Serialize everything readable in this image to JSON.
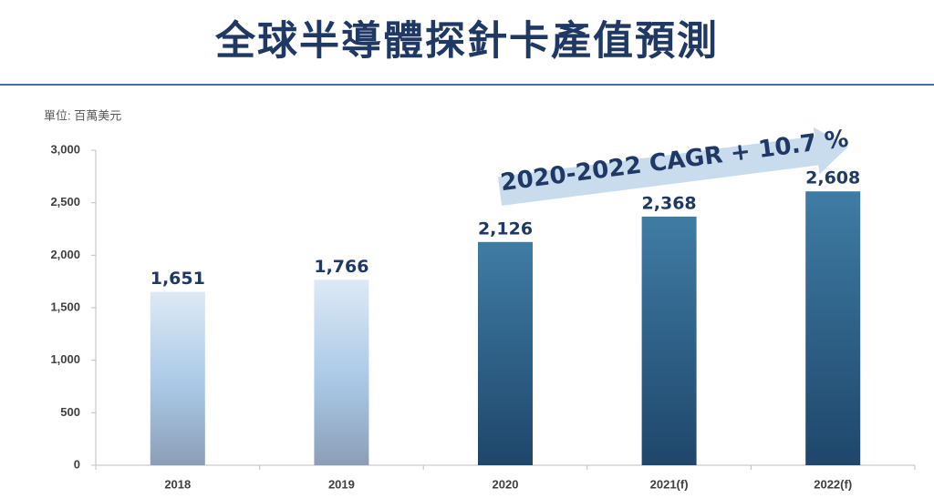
{
  "chart_data": {
    "type": "bar",
    "title": "全球半導體探針卡產值預測",
    "unit_label": "單位: 百萬美元",
    "annotation": "2020-2022 CAGR + 10.7 %",
    "categories": [
      "2018",
      "2019",
      "2020",
      "2021(f)",
      "2022(f)"
    ],
    "values": [
      1651,
      1766,
      2126,
      2368,
      2608
    ],
    "value_labels": [
      "1,651",
      "1,766",
      "2,126",
      "2,368",
      "2,608"
    ],
    "colors": [
      "#a9c8e6",
      "#a9c8e6",
      "#2a6d9a",
      "#2a6d9a",
      "#2a6d9a"
    ],
    "ylim": [
      0,
      3000
    ],
    "yticks": [
      0,
      500,
      {
        "value": 1000,
        "label": "1,000"
      },
      {
        "value": 1500,
        "label": "1,500"
      },
      {
        "value": 2000,
        "label": "2,000"
      },
      {
        "value": 2500,
        "label": "2,500"
      },
      {
        "value": 3000,
        "label": "3,000"
      }
    ],
    "grid": false
  }
}
